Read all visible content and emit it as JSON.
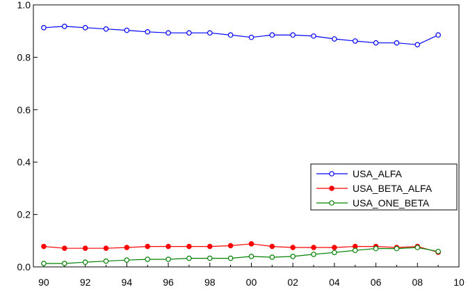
{
  "chart_data": {
    "type": "line",
    "title": "",
    "xlabel": "",
    "ylabel": "",
    "x": [
      1990,
      1991,
      1992,
      1993,
      1994,
      1995,
      1996,
      1997,
      1998,
      1999,
      2000,
      2001,
      2002,
      2003,
      2004,
      2005,
      2006,
      2007,
      2008,
      2009
    ],
    "xlim": [
      1989.5,
      2010
    ],
    "ylim": [
      0.0,
      1.0
    ],
    "x_ticks": [
      1990,
      1992,
      1994,
      1996,
      1998,
      2000,
      2002,
      2004,
      2006,
      2008,
      2010
    ],
    "x_tick_labels": [
      "90",
      "92",
      "94",
      "96",
      "98",
      "00",
      "02",
      "04",
      "06",
      "08",
      "10"
    ],
    "y_ticks": [
      0.0,
      0.2,
      0.4,
      0.6,
      0.8,
      1.0
    ],
    "y_tick_labels": [
      "0.0",
      "0.2",
      "0.4",
      "0.6",
      "0.8",
      "1.0"
    ],
    "grid": false,
    "legend_position": "right",
    "series": [
      {
        "name": "USA_ALFA",
        "color": "#0000ff",
        "marker": "open-circle",
        "values": [
          0.913,
          0.918,
          0.913,
          0.908,
          0.903,
          0.897,
          0.893,
          0.893,
          0.893,
          0.885,
          0.876,
          0.885,
          0.885,
          0.881,
          0.87,
          0.862,
          0.855,
          0.855,
          0.848,
          0.885
        ]
      },
      {
        "name": "USA_BETA_ALFA",
        "color": "#ff0000",
        "marker": "filled-circle",
        "values": [
          0.078,
          0.071,
          0.071,
          0.071,
          0.074,
          0.078,
          0.078,
          0.078,
          0.078,
          0.081,
          0.088,
          0.078,
          0.074,
          0.074,
          0.074,
          0.078,
          0.078,
          0.074,
          0.078,
          0.056
        ]
      },
      {
        "name": "USA_ONE_BETA",
        "color": "#008000",
        "marker": "open-circle",
        "values": [
          0.013,
          0.013,
          0.018,
          0.022,
          0.026,
          0.029,
          0.029,
          0.033,
          0.033,
          0.033,
          0.04,
          0.037,
          0.04,
          0.048,
          0.055,
          0.063,
          0.07,
          0.07,
          0.074,
          0.059
        ]
      }
    ]
  }
}
